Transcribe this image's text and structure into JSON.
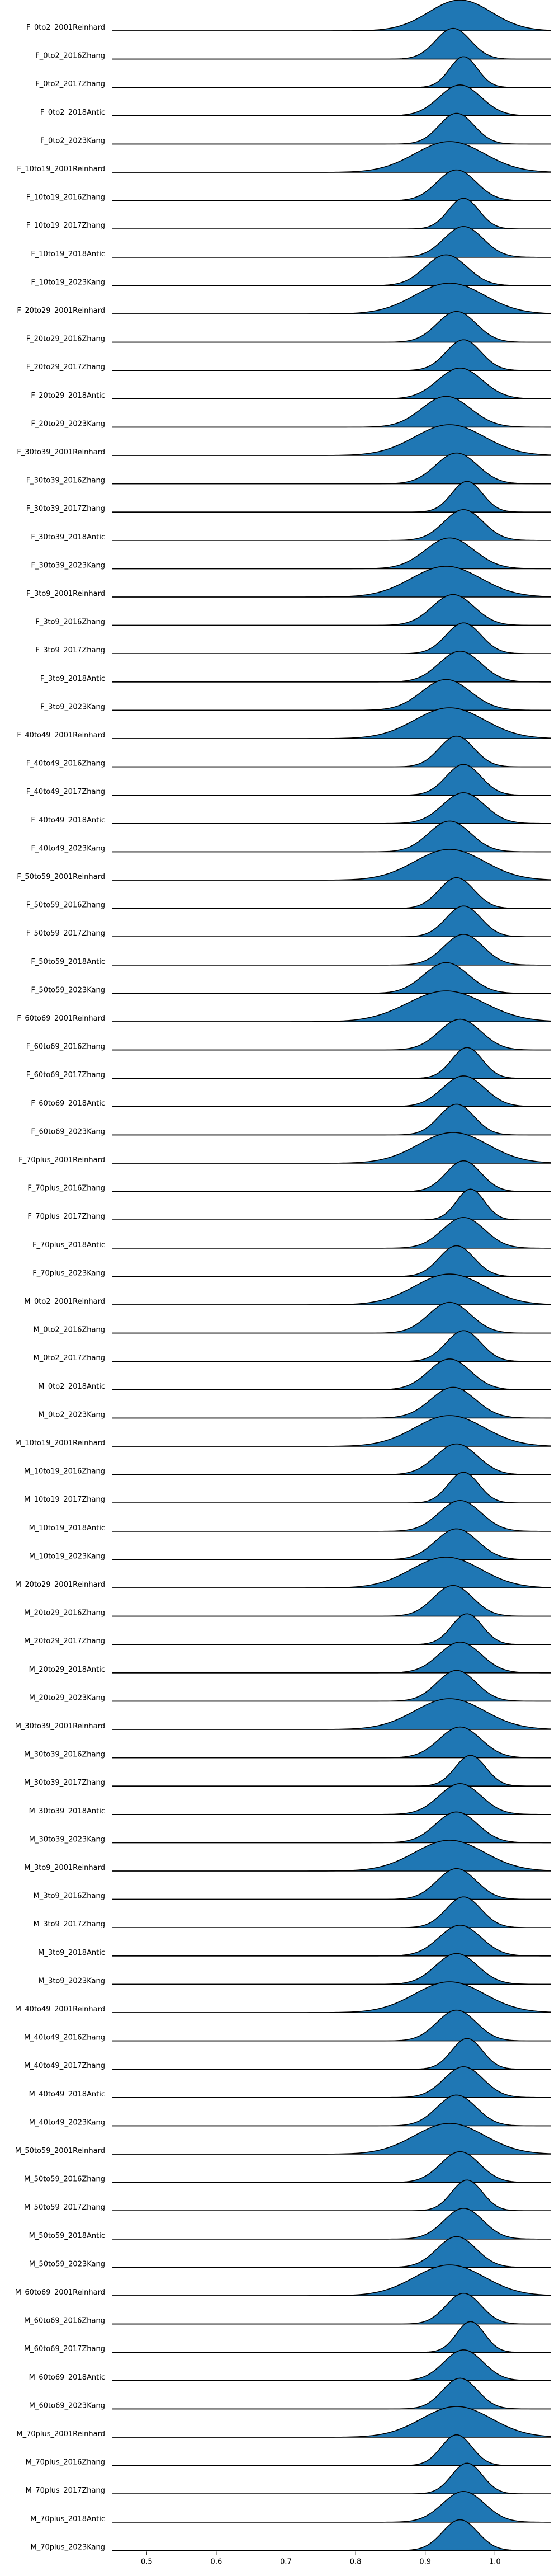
{
  "chart_data": {
    "type": "area",
    "subtype": "ridgeline",
    "title": "",
    "xlabel": "",
    "ylabel": "",
    "xlim": [
      0.45,
      1.08
    ],
    "xticks": [
      0.5,
      0.6,
      0.7,
      0.8,
      0.9,
      1.0
    ],
    "xtick_labels": [
      "0.5",
      "0.6",
      "0.7",
      "0.8",
      "0.9",
      "1.0"
    ],
    "grid": false,
    "fill_color": "#1f77b4",
    "line_color": "#000000",
    "series": [
      {
        "name": "F_0to2_2001Reinhard",
        "mean": 0.95,
        "sd": 0.045
      },
      {
        "name": "F_0to2_2016Zhang",
        "mean": 0.94,
        "sd": 0.025
      },
      {
        "name": "F_0to2_2017Zhang",
        "mean": 0.955,
        "sd": 0.02
      },
      {
        "name": "F_0to2_2018Antic",
        "mean": 0.95,
        "sd": 0.03
      },
      {
        "name": "F_0to2_2023Kang",
        "mean": 0.945,
        "sd": 0.025
      },
      {
        "name": "F_10to19_2001Reinhard",
        "mean": 0.935,
        "sd": 0.05
      },
      {
        "name": "F_10to19_2016Zhang",
        "mean": 0.945,
        "sd": 0.028
      },
      {
        "name": "F_10to19_2017Zhang",
        "mean": 0.955,
        "sd": 0.022
      },
      {
        "name": "F_10to19_2018Antic",
        "mean": 0.955,
        "sd": 0.028
      },
      {
        "name": "F_10to19_2023Kang",
        "mean": 0.93,
        "sd": 0.03
      },
      {
        "name": "F_20to29_2001Reinhard",
        "mean": 0.935,
        "sd": 0.05
      },
      {
        "name": "F_20to29_2016Zhang",
        "mean": 0.945,
        "sd": 0.028
      },
      {
        "name": "F_20to29_2017Zhang",
        "mean": 0.955,
        "sd": 0.025
      },
      {
        "name": "F_20to29_2018Antic",
        "mean": 0.95,
        "sd": 0.032
      },
      {
        "name": "F_20to29_2023Kang",
        "mean": 0.93,
        "sd": 0.035
      },
      {
        "name": "F_30to39_2001Reinhard",
        "mean": 0.935,
        "sd": 0.05
      },
      {
        "name": "F_30to39_2016Zhang",
        "mean": 0.945,
        "sd": 0.03
      },
      {
        "name": "F_30to39_2017Zhang",
        "mean": 0.96,
        "sd": 0.022
      },
      {
        "name": "F_30to39_2018Antic",
        "mean": 0.955,
        "sd": 0.028
      },
      {
        "name": "F_30to39_2023Kang",
        "mean": 0.935,
        "sd": 0.035
      },
      {
        "name": "F_3to9_2001Reinhard",
        "mean": 0.93,
        "sd": 0.05
      },
      {
        "name": "F_3to9_2016Zhang",
        "mean": 0.94,
        "sd": 0.03
      },
      {
        "name": "F_3to9_2017Zhang",
        "mean": 0.955,
        "sd": 0.025
      },
      {
        "name": "F_3to9_2018Antic",
        "mean": 0.95,
        "sd": 0.03
      },
      {
        "name": "F_3to9_2023Kang",
        "mean": 0.93,
        "sd": 0.035
      },
      {
        "name": "F_40to49_2001Reinhard",
        "mean": 0.935,
        "sd": 0.05
      },
      {
        "name": "F_40to49_2016Zhang",
        "mean": 0.945,
        "sd": 0.025
      },
      {
        "name": "F_40to49_2017Zhang",
        "mean": 0.955,
        "sd": 0.025
      },
      {
        "name": "F_40to49_2018Antic",
        "mean": 0.955,
        "sd": 0.03
      },
      {
        "name": "F_40to49_2023Kang",
        "mean": 0.935,
        "sd": 0.03
      },
      {
        "name": "F_50to59_2001Reinhard",
        "mean": 0.935,
        "sd": 0.05
      },
      {
        "name": "F_50to59_2016Zhang",
        "mean": 0.945,
        "sd": 0.025
      },
      {
        "name": "F_50to59_2017Zhang",
        "mean": 0.955,
        "sd": 0.025
      },
      {
        "name": "F_50to59_2018Antic",
        "mean": 0.955,
        "sd": 0.028
      },
      {
        "name": "F_50to59_2023Kang",
        "mean": 0.93,
        "sd": 0.032
      },
      {
        "name": "F_60to69_2001Reinhard",
        "mean": 0.93,
        "sd": 0.055
      },
      {
        "name": "F_60to69_2016Zhang",
        "mean": 0.95,
        "sd": 0.03
      },
      {
        "name": "F_60to69_2017Zhang",
        "mean": 0.96,
        "sd": 0.022
      },
      {
        "name": "F_60to69_2018Antic",
        "mean": 0.955,
        "sd": 0.03
      },
      {
        "name": "F_60to69_2023Kang",
        "mean": 0.945,
        "sd": 0.025
      },
      {
        "name": "F_70plus_2001Reinhard",
        "mean": 0.94,
        "sd": 0.05
      },
      {
        "name": "F_70plus_2016Zhang",
        "mean": 0.955,
        "sd": 0.025
      },
      {
        "name": "F_70plus_2017Zhang",
        "mean": 0.965,
        "sd": 0.02
      },
      {
        "name": "F_70plus_2018Antic",
        "mean": 0.955,
        "sd": 0.03
      },
      {
        "name": "F_70plus_2023Kang",
        "mean": 0.945,
        "sd": 0.025
      },
      {
        "name": "M_0to2_2001Reinhard",
        "mean": 0.935,
        "sd": 0.05
      },
      {
        "name": "M_0to2_2016Zhang",
        "mean": 0.935,
        "sd": 0.03
      },
      {
        "name": "M_0to2_2017Zhang",
        "mean": 0.955,
        "sd": 0.025
      },
      {
        "name": "M_0to2_2018Antic",
        "mean": 0.935,
        "sd": 0.03
      },
      {
        "name": "M_0to2_2023Kang",
        "mean": 0.94,
        "sd": 0.032
      },
      {
        "name": "M_10to19_2001Reinhard",
        "mean": 0.935,
        "sd": 0.05
      },
      {
        "name": "M_10to19_2016Zhang",
        "mean": 0.945,
        "sd": 0.03
      },
      {
        "name": "M_10to19_2017Zhang",
        "mean": 0.955,
        "sd": 0.022
      },
      {
        "name": "M_10to19_2018Antic",
        "mean": 0.95,
        "sd": 0.03
      },
      {
        "name": "M_10to19_2023Kang",
        "mean": 0.945,
        "sd": 0.03
      },
      {
        "name": "M_20to29_2001Reinhard",
        "mean": 0.93,
        "sd": 0.05
      },
      {
        "name": "M_20to29_2016Zhang",
        "mean": 0.94,
        "sd": 0.028
      },
      {
        "name": "M_20to29_2017Zhang",
        "mean": 0.96,
        "sd": 0.022
      },
      {
        "name": "M_20to29_2018Antic",
        "mean": 0.95,
        "sd": 0.03
      },
      {
        "name": "M_20to29_2023Kang",
        "mean": 0.945,
        "sd": 0.028
      },
      {
        "name": "M_30to39_2001Reinhard",
        "mean": 0.935,
        "sd": 0.05
      },
      {
        "name": "M_30to39_2016Zhang",
        "mean": 0.95,
        "sd": 0.03
      },
      {
        "name": "M_30to39_2017Zhang",
        "mean": 0.965,
        "sd": 0.022
      },
      {
        "name": "M_30to39_2018Antic",
        "mean": 0.95,
        "sd": 0.03
      },
      {
        "name": "M_30to39_2023Kang",
        "mean": 0.945,
        "sd": 0.03
      },
      {
        "name": "M_3to9_2001Reinhard",
        "mean": 0.935,
        "sd": 0.05
      },
      {
        "name": "M_3to9_2016Zhang",
        "mean": 0.945,
        "sd": 0.028
      },
      {
        "name": "M_3to9_2017Zhang",
        "mean": 0.955,
        "sd": 0.025
      },
      {
        "name": "M_3to9_2018Antic",
        "mean": 0.95,
        "sd": 0.03
      },
      {
        "name": "M_3to9_2023Kang",
        "mean": 0.945,
        "sd": 0.03
      },
      {
        "name": "M_40to49_2001Reinhard",
        "mean": 0.935,
        "sd": 0.05
      },
      {
        "name": "M_40to49_2016Zhang",
        "mean": 0.945,
        "sd": 0.028
      },
      {
        "name": "M_40to49_2017Zhang",
        "mean": 0.96,
        "sd": 0.022
      },
      {
        "name": "M_40to49_2018Antic",
        "mean": 0.955,
        "sd": 0.028
      },
      {
        "name": "M_40to49_2023Kang",
        "mean": 0.945,
        "sd": 0.028
      },
      {
        "name": "M_50to59_2001Reinhard",
        "mean": 0.935,
        "sd": 0.05
      },
      {
        "name": "M_50to59_2016Zhang",
        "mean": 0.95,
        "sd": 0.028
      },
      {
        "name": "M_50to59_2017Zhang",
        "mean": 0.96,
        "sd": 0.022
      },
      {
        "name": "M_50to59_2018Antic",
        "mean": 0.955,
        "sd": 0.028
      },
      {
        "name": "M_50to59_2023Kang",
        "mean": 0.945,
        "sd": 0.028
      },
      {
        "name": "M_60to69_2001Reinhard",
        "mean": 0.935,
        "sd": 0.05
      },
      {
        "name": "M_60to69_2016Zhang",
        "mean": 0.955,
        "sd": 0.025
      },
      {
        "name": "M_60to69_2017Zhang",
        "mean": 0.965,
        "sd": 0.02
      },
      {
        "name": "M_60to69_2018Antic",
        "mean": 0.955,
        "sd": 0.028
      },
      {
        "name": "M_60to69_2023Kang",
        "mean": 0.95,
        "sd": 0.025
      },
      {
        "name": "M_70plus_2001Reinhard",
        "mean": 0.945,
        "sd": 0.05
      },
      {
        "name": "M_70plus_2016Zhang",
        "mean": 0.945,
        "sd": 0.022
      },
      {
        "name": "M_70plus_2017Zhang",
        "mean": 0.96,
        "sd": 0.022
      },
      {
        "name": "M_70plus_2018Antic",
        "mean": 0.955,
        "sd": 0.03
      },
      {
        "name": "M_70plus_2023Kang",
        "mean": 0.95,
        "sd": 0.025
      }
    ]
  }
}
